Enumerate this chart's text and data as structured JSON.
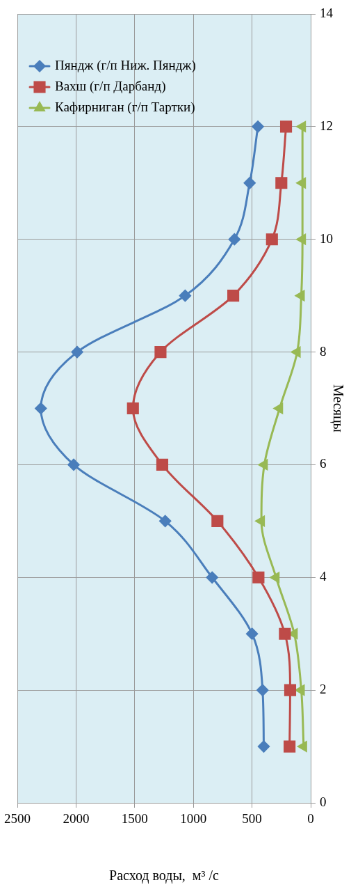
{
  "chart_data": {
    "type": "line",
    "orientation": "horizontal",
    "xlabel": "Расход воды,  м³ /с",
    "ylabel": "Месяцы",
    "x": [
      1,
      2,
      3,
      4,
      5,
      6,
      7,
      8,
      9,
      10,
      11,
      12
    ],
    "series": [
      {
        "name": "Пяндж (г/п Ниж. Пяндж)",
        "color": "#4a7ebb",
        "marker": "diamond",
        "values": [
          400,
          410,
          500,
          840,
          1240,
          2020,
          2300,
          1990,
          1070,
          650,
          520,
          450
        ]
      },
      {
        "name": "Вахш (г/п Дарбанд)",
        "color": "#be4b48",
        "marker": "square",
        "values": [
          180,
          175,
          220,
          445,
          795,
          1265,
          1515,
          1280,
          660,
          330,
          250,
          210
        ]
      },
      {
        "name": "Кафирниган (г/п Тартки)",
        "color": "#98b954",
        "marker": "triangle",
        "values": [
          60,
          80,
          140,
          295,
          420,
          395,
          265,
          115,
          80,
          70,
          70,
          70
        ]
      }
    ],
    "xlim": [
      2500,
      0
    ],
    "xticks": [
      2500,
      2000,
      1500,
      1000,
      500,
      0
    ],
    "ylim": [
      0,
      14
    ],
    "yticks": [
      0,
      2,
      4,
      6,
      8,
      10,
      12,
      14
    ],
    "grid": true,
    "legend": "top left",
    "line_style": "solid"
  }
}
